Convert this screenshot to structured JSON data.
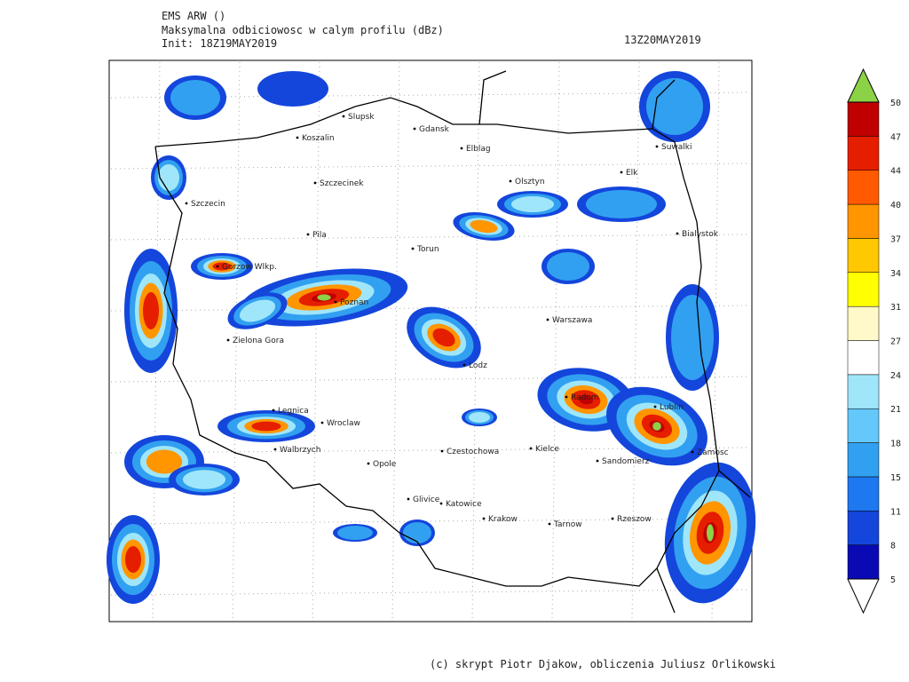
{
  "header": {
    "model": "EMS ARW ()",
    "field": "Maksymalna odbiciowosc w calym profilu (dBz)",
    "init": "Init: 18Z19MAY2019",
    "valid": "13Z20MAY2019"
  },
  "cities": [
    "Slupsk",
    "Gdansk",
    "Koszalin",
    "Elblag",
    "Suwalki",
    "Szczecinek",
    "Olsztyn",
    "Elk",
    "Szczecin",
    "Pila",
    "Torun",
    "Bialystok",
    "Gorzow Wlkp.",
    "Poznan",
    "Warszawa",
    "Zielona Gora",
    "Lodz",
    "Radom",
    "Lublin",
    "Legnica",
    "Wroclaw",
    "Walbrzych",
    "Opole",
    "Czestochowa",
    "Kielce",
    "Sandomierz",
    "Zamosc",
    "Glivice",
    "Katowice",
    "Krakow",
    "Tarnow",
    "Rzeszow"
  ],
  "colorbar": {
    "ticks": [
      "5",
      "8",
      "11",
      "15",
      "18",
      "21",
      "24",
      "27",
      "31",
      "34",
      "37",
      "40",
      "44",
      "47",
      "50"
    ],
    "colors": [
      "#0a0ab4",
      "#1446dc",
      "#1e78f0",
      "#32a0f0",
      "#64c8fa",
      "#a0e6fa",
      "#ffffff",
      "#fff8c8",
      "#ffff00",
      "#ffc800",
      "#ff9600",
      "#ff5a00",
      "#e61e00",
      "#c00000"
    ],
    "over_color": "#8cd246",
    "under_color": "#ffffff"
  },
  "footer": "(c) skrypt Piotr Djakow, obliczenia Juliusz Orlikowski"
}
